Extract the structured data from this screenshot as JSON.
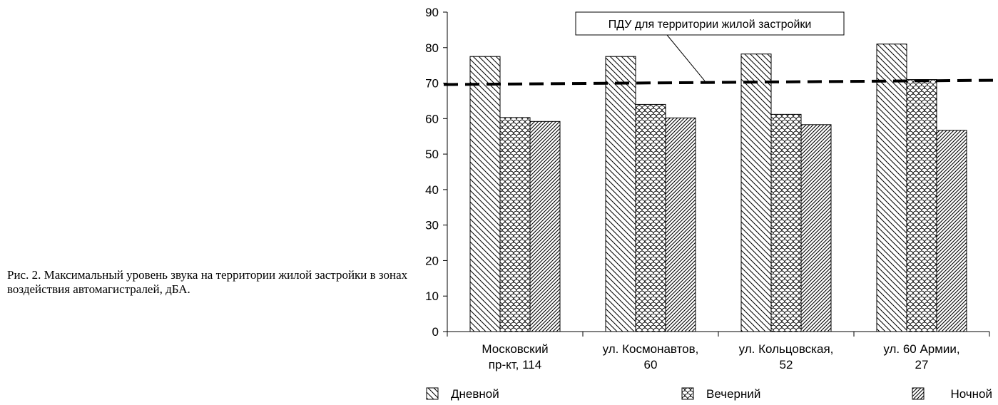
{
  "caption": "Рис. 2. Максимальный уровень звука на территории жилой застройки в зонах воздействия автомагистралей, дБА.",
  "chart_data": {
    "type": "bar",
    "categories": [
      [
        "Московский",
        "пр-кт, 114"
      ],
      [
        "ул. Космонавтов,",
        "60"
      ],
      [
        "ул. Кольцовская,",
        "52"
      ],
      [
        "ул. 60 Армии,",
        "27"
      ]
    ],
    "series": [
      {
        "name": "Дневной",
        "values": [
          77.5,
          77.5,
          78.2,
          81.0
        ],
        "pattern": "diag-down"
      },
      {
        "name": "Вечерний",
        "values": [
          60.3,
          64.0,
          61.2,
          71.0
        ],
        "pattern": "scales"
      },
      {
        "name": "Ночной",
        "values": [
          59.2,
          60.2,
          58.3,
          56.7
        ],
        "pattern": "diag-up"
      }
    ],
    "ylim": [
      0,
      90
    ],
    "yticks": [
      0,
      10,
      20,
      30,
      40,
      50,
      60,
      70,
      80,
      90
    ],
    "xlabel": "",
    "ylabel": "",
    "grid": false,
    "legend_position": "bottom",
    "reference_line": {
      "label": "ПДУ для территории жилой застройки",
      "y_start": 69.6,
      "y_end": 70.8,
      "style": "dashed"
    }
  }
}
